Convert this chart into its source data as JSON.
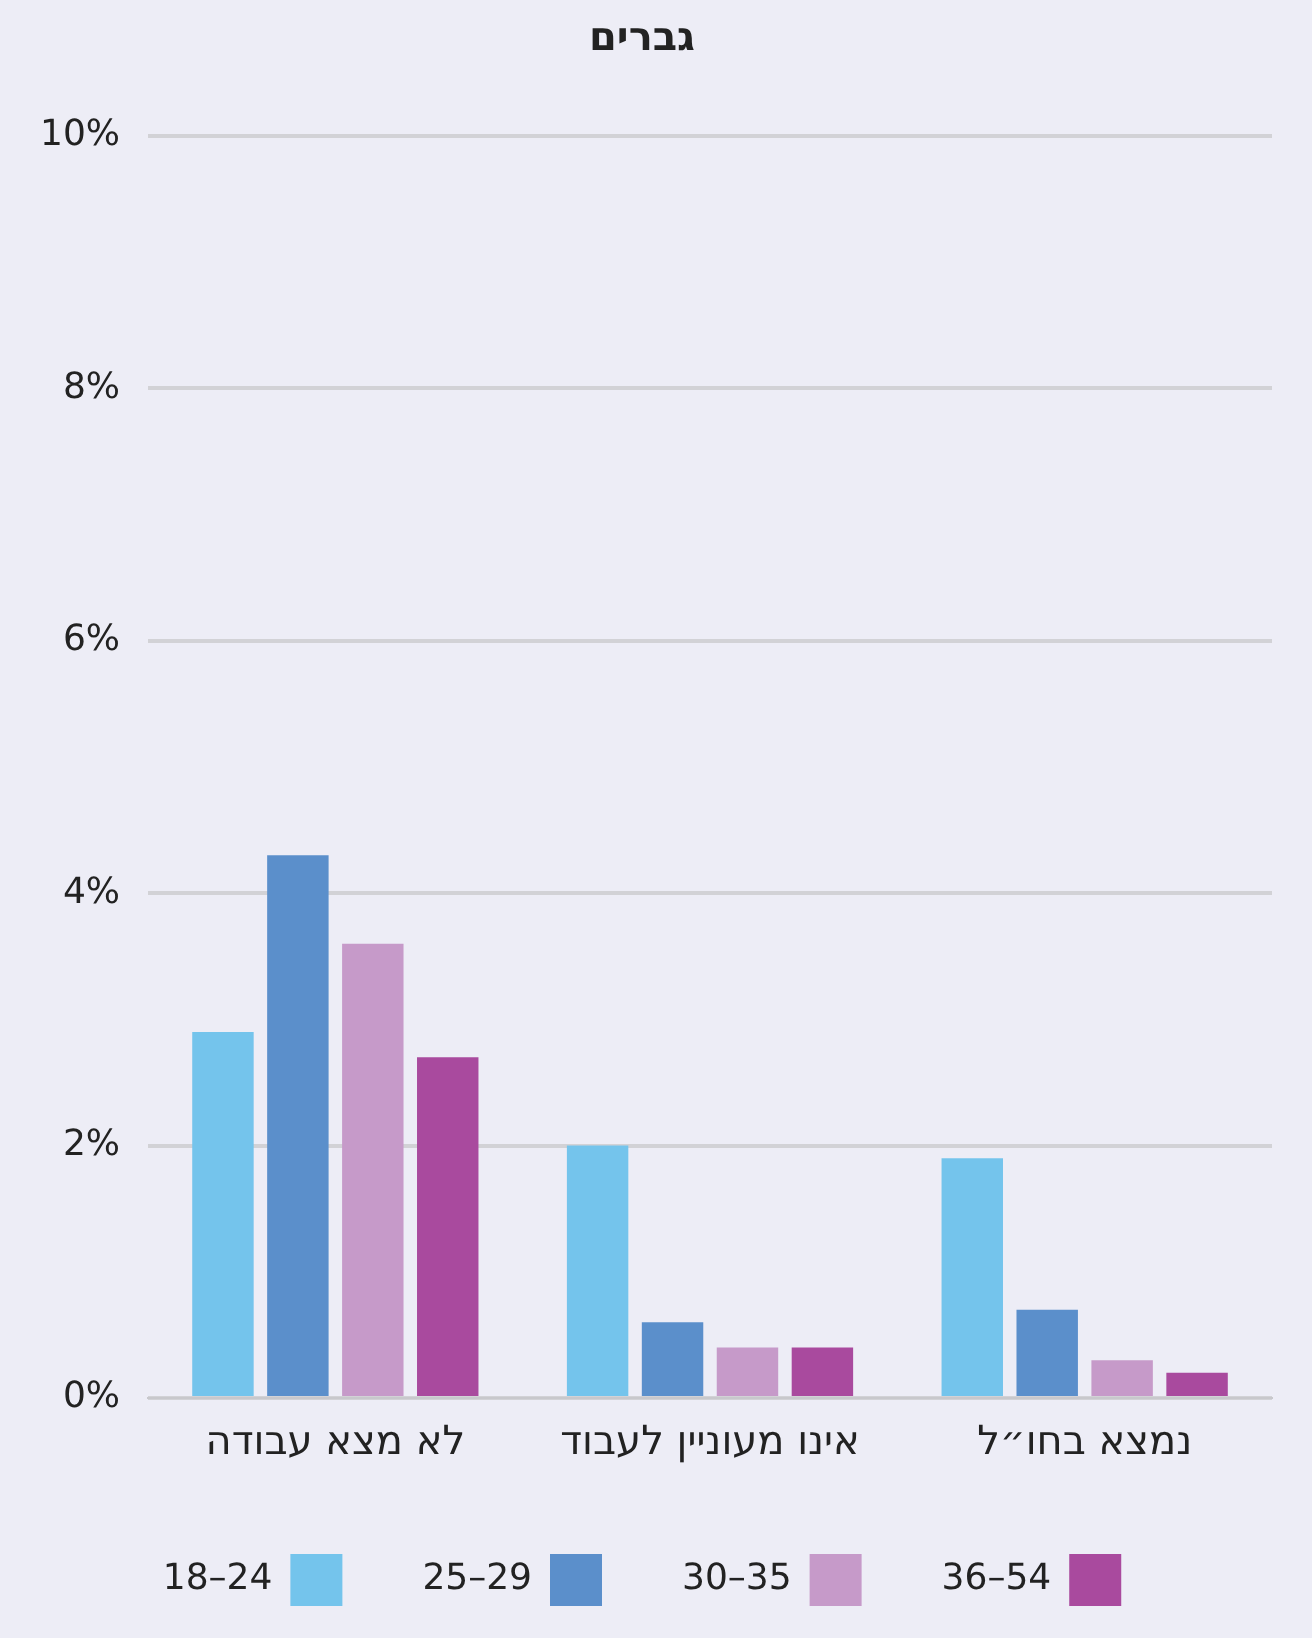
{
  "chart_data": {
    "type": "bar",
    "title": "גברים",
    "categories": [
      "לא מצא עבודה",
      "אינו מעוניין לעבוד",
      "נמצא בחו״ל"
    ],
    "series": [
      {
        "name": "18–24",
        "color": "#74c4ec",
        "values": [
          2.9,
          2.0,
          1.9
        ]
      },
      {
        "name": "25–29",
        "color": "#5b8fcb",
        "values": [
          4.3,
          0.6,
          0.7
        ]
      },
      {
        "name": "30–35",
        "color": "#c69ac9",
        "values": [
          3.6,
          0.4,
          0.3
        ]
      },
      {
        "name": "36–54",
        "color": "#a94a9e",
        "values": [
          2.7,
          0.4,
          0.2
        ]
      }
    ],
    "ylim": [
      0,
      10
    ],
    "yticks": [
      {
        "value": 0,
        "label": "0%"
      },
      {
        "value": 2,
        "label": "2%"
      },
      {
        "value": 4,
        "label": "4%"
      },
      {
        "value": 6,
        "label": "6%"
      },
      {
        "value": 8,
        "label": "8%"
      },
      {
        "value": 10,
        "label": "10%"
      }
    ],
    "grid": "y",
    "legend": "bottom"
  }
}
